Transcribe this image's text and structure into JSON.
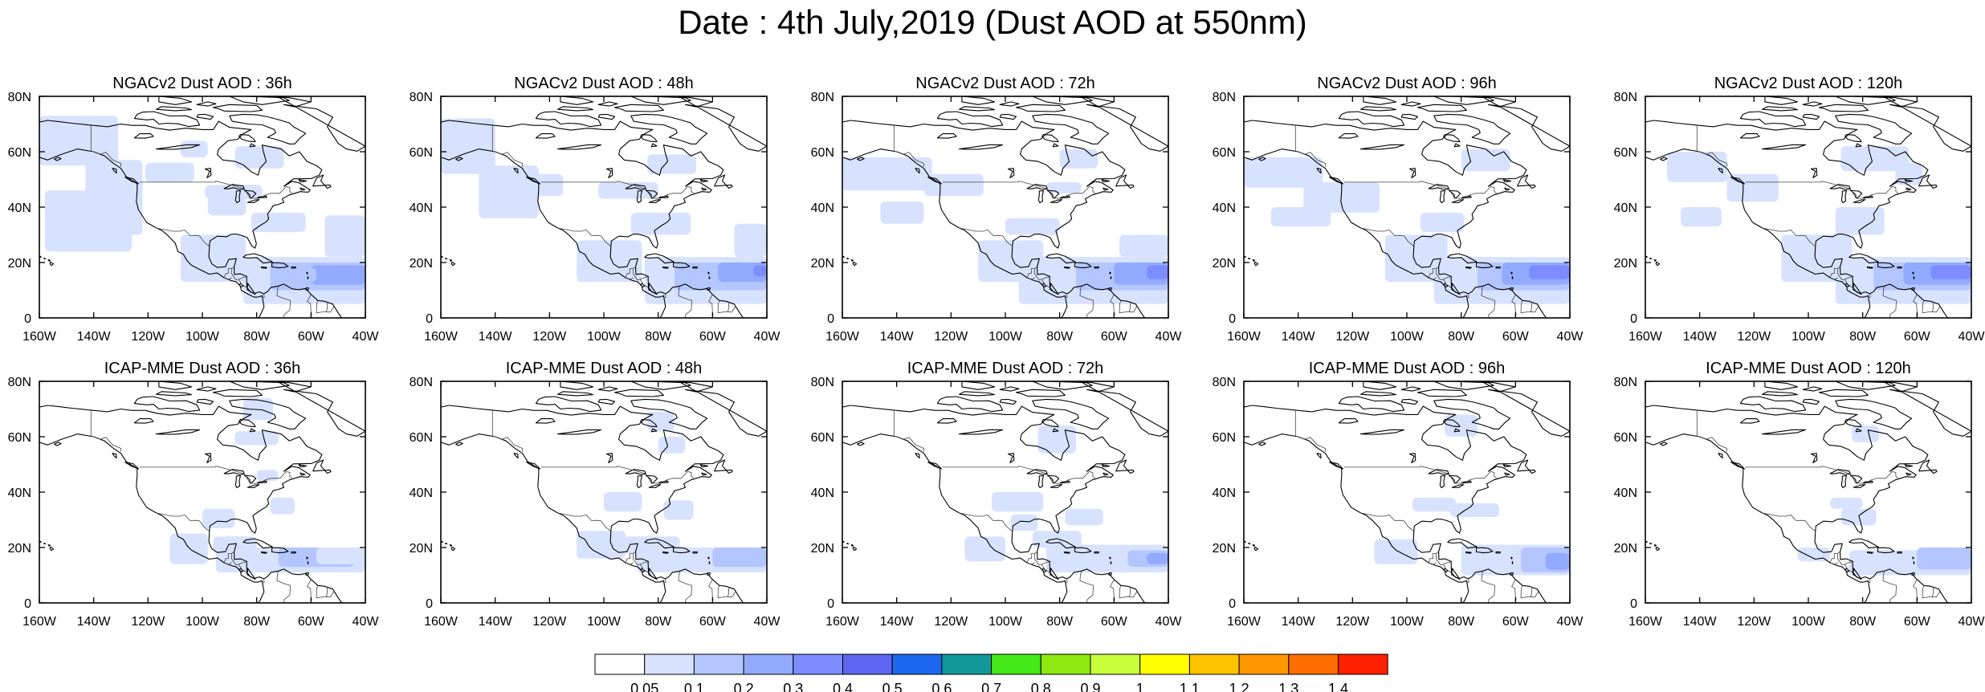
{
  "title": "Date : 4th July,2019 (Dust AOD at 550nm)",
  "x_ticks": [
    "160W",
    "140W",
    "120W",
    "100W",
    "80W",
    "60W",
    "40W"
  ],
  "y_ticks": [
    "80N",
    "60N",
    "40N",
    "20N",
    "0"
  ],
  "lon_range": [
    -160,
    -40
  ],
  "lat_range": [
    0,
    80
  ],
  "panels": [
    {
      "row": 0,
      "col": 0,
      "title": "NGACv2 Dust AOD : 36h",
      "model": "NGACv2",
      "lead": 36
    },
    {
      "row": 0,
      "col": 1,
      "title": "NGACv2 Dust AOD : 48h",
      "model": "NGACv2",
      "lead": 48
    },
    {
      "row": 0,
      "col": 2,
      "title": "NGACv2 Dust AOD : 72h",
      "model": "NGACv2",
      "lead": 72
    },
    {
      "row": 0,
      "col": 3,
      "title": "NGACv2 Dust AOD : 96h",
      "model": "NGACv2",
      "lead": 96
    },
    {
      "row": 0,
      "col": 4,
      "title": "NGACv2 Dust AOD : 120h",
      "model": "NGACv2",
      "lead": 120
    },
    {
      "row": 1,
      "col": 0,
      "title": "ICAP-MME Dust AOD : 36h",
      "model": "ICAP-MME",
      "lead": 36
    },
    {
      "row": 1,
      "col": 1,
      "title": "ICAP-MME Dust AOD : 48h",
      "model": "ICAP-MME",
      "lead": 48
    },
    {
      "row": 1,
      "col": 2,
      "title": "ICAP-MME Dust AOD : 72h",
      "model": "ICAP-MME",
      "lead": 72
    },
    {
      "row": 1,
      "col": 3,
      "title": "ICAP-MME Dust AOD : 96h",
      "model": "ICAP-MME",
      "lead": 96
    },
    {
      "row": 1,
      "col": 4,
      "title": "ICAP-MME Dust AOD : 120h",
      "model": "ICAP-MME",
      "lead": 120
    }
  ],
  "colorbar": {
    "labels": [
      "0.05",
      "0.1",
      "0.2",
      "0.3",
      "0.4",
      "0.5",
      "0.6",
      "0.7",
      "0.8",
      "0.9",
      "1",
      "1.1",
      "1.2",
      "1.3",
      "1.4"
    ],
    "colors": [
      "#ffffff",
      "#d7e2ff",
      "#b4c6ff",
      "#92aaff",
      "#7d8cff",
      "#5c66f0",
      "#1c68f0",
      "#129a9a",
      "#44e818",
      "#8ce810",
      "#c8ff3a",
      "#ffff00",
      "#ffc300",
      "#ff9800",
      "#ff6c00",
      "#ff2000"
    ]
  },
  "colors": {
    "frame": "#000000",
    "coast": "#000000",
    "border": "#555555"
  }
}
